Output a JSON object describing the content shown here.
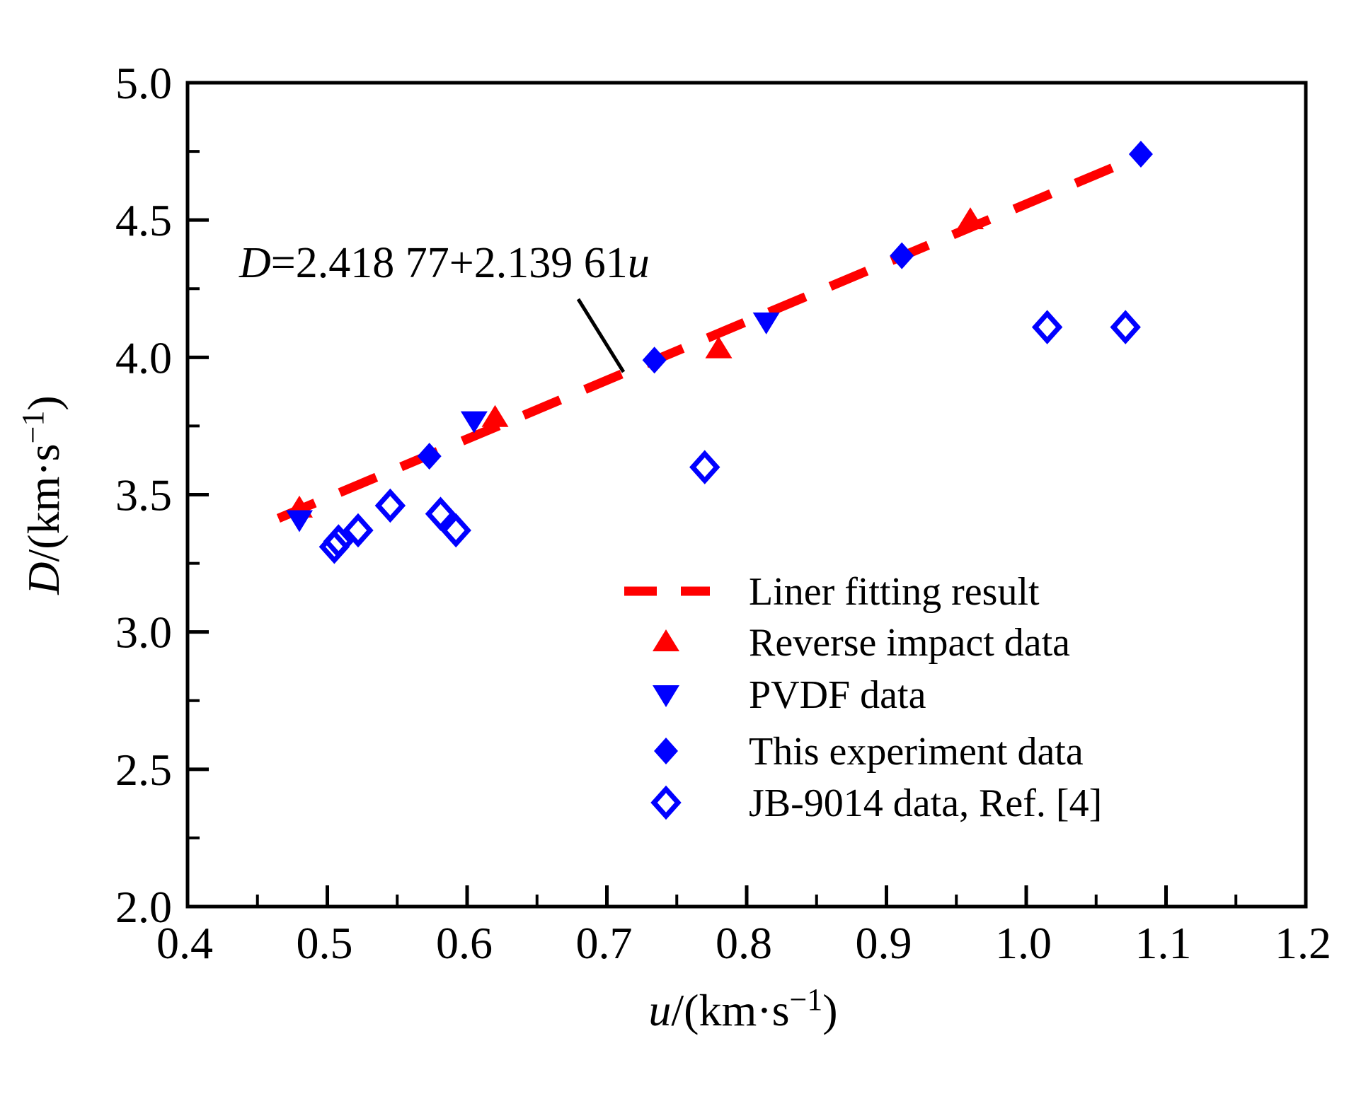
{
  "chart_data": {
    "type": "scatter",
    "title": "",
    "xlabel": "u/(km·s⁻¹)",
    "ylabel": "D/(km·s⁻¹)",
    "xlabel_rich": {
      "var": "u",
      "unit": "/(km·s",
      "sup": "−1",
      "close": ")"
    },
    "ylabel_rich": {
      "var": "D",
      "unit": "/(km·s",
      "sup": "−1",
      "close": ")"
    },
    "xlim": [
      0.4,
      1.2
    ],
    "ylim": [
      2.0,
      5.0
    ],
    "x_ticks": [
      0.4,
      0.5,
      0.6,
      0.7,
      0.8,
      0.9,
      1.0,
      1.1,
      1.2
    ],
    "y_ticks": [
      2.0,
      2.5,
      3.0,
      3.5,
      4.0,
      4.5,
      5.0
    ],
    "x_minor_step": 0.05,
    "y_minor_step": 0.25,
    "grid": false,
    "annotation": {
      "text": "D=2.418 77+2.139 61u",
      "lhs": "D",
      "mid": "=2.418 77+2.139 61",
      "rhs_var": "u"
    },
    "fit_line": {
      "label": "Liner fitting result",
      "intercept": 2.41877,
      "slope": 2.13961,
      "u_start": 0.465,
      "u_end": 1.068,
      "color": "#ff0000",
      "style": "dashed"
    },
    "series": [
      {
        "name": "Reverse impact data",
        "marker": "triangle-up",
        "color": "#ff0000",
        "points": [
          [
            0.48,
            3.45
          ],
          [
            0.62,
            3.78
          ],
          [
            0.78,
            4.03
          ],
          [
            0.96,
            4.5
          ]
        ]
      },
      {
        "name": "PVDF data",
        "marker": "triangle-down",
        "color": "#0000ff",
        "points": [
          [
            0.48,
            3.41
          ],
          [
            0.605,
            3.77
          ],
          [
            0.814,
            4.13
          ]
        ]
      },
      {
        "name": "This experiment data",
        "marker": "diamond-filled",
        "color": "#0000ff",
        "points": [
          [
            0.573,
            3.64
          ],
          [
            0.734,
            3.99
          ],
          [
            0.911,
            4.37
          ],
          [
            1.082,
            4.74
          ]
        ]
      },
      {
        "name": "JB-9014 data, Ref. [4]",
        "marker": "diamond-open",
        "color": "#0000ff",
        "points": [
          [
            0.505,
            3.31
          ],
          [
            0.508,
            3.33
          ],
          [
            0.522,
            3.37
          ],
          [
            0.545,
            3.46
          ],
          [
            0.581,
            3.43
          ],
          [
            0.592,
            3.37
          ],
          [
            0.77,
            3.6
          ],
          [
            1.015,
            4.11
          ],
          [
            1.071,
            4.11
          ]
        ]
      }
    ],
    "legend_position": "inside middle-right",
    "axis_ranges_note": "x from 0.4 to 1.2, y from 2.0 to 5.0"
  },
  "colors": {
    "red": "#ff0000",
    "blue": "#0000ff",
    "black": "#000000",
    "background": "#ffffff"
  }
}
